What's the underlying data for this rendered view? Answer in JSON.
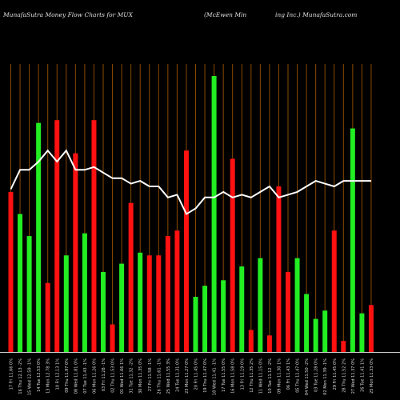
{
  "header": {
    "left": "MunafaSutra  Money Flow  Charts for MUX",
    "middle": "(McEwen  Min",
    "right": "ing Inc.) MunafaSutra.com"
  },
  "chart_data": {
    "type": "bar",
    "title": "MunafaSutra  Money Flow  Charts for MUX",
    "grid": "vertical lines per bar",
    "ylim": [
      0,
      100
    ],
    "colors": {
      "up": "#22ee22",
      "down": "#ff1111",
      "line": "#ffffff",
      "grid": "#8a4a00",
      "axis": "#cccccc"
    },
    "categories": [
      "17 Fri 11.66 0%",
      "16 Thu 12.13 -2%",
      "15 Wed 12.59 -1%",
      "14 Tue 12.53 0%",
      "13 Mon 12.78 3%",
      "10 Fri 12.13 1%",
      "09 Thu 11.97 0%",
      "08 Wed 11.81 0%",
      "07 Tue 11.43 -1%",
      "06 Mon 11.26 0%",
      "03 Fri 11.28 -1%",
      "02 Thu 11.53 0%",
      "01 Wed 11.66 1%",
      "31 Tue 11.32 -2%",
      "30 Mon 11.35 0%",
      "27 Fri 11.58 -1%",
      "26 Thu 11.61 -1%",
      "25 Wed 11.55 3%",
      "24 Tue 11.31 0%",
      "23 Mon 11.27 0%",
      "20 Fri 11.45 0%",
      "19 Thu 11.47 0%",
      "18 Wed 11.41 -1%",
      "17 Tue 11.55 0%",
      "16 Mon 11.58 0%",
      "13 Fri 11.19 0%",
      "12 Thu 11.35 2%",
      "11 Wed 11.15 0%",
      "10 Tue 11.12 -2%",
      "09 Mon 11.30 1%",
      "06 Fri 11.43 1%",
      "05 Thu 11.47 0%",
      "04 Wed 11.50 -2%",
      "03 Tue 11.28 0%",
      "02 Mon 11.39 -1%",
      "29 Fri 11.45 0%",
      "28 Thu 11.52 2%",
      "27 Wed 11.37 0%",
      "26 Tue 11.41 1%",
      "25 Mon 11.33 0%"
    ],
    "series": [
      {
        "values": [
          58,
          50,
          42,
          83,
          25,
          84,
          35,
          72,
          43,
          84,
          29,
          10,
          32,
          54,
          36,
          35,
          35,
          42,
          44,
          73,
          20,
          24,
          100,
          26,
          70,
          31,
          8,
          34,
          6,
          60,
          29,
          34,
          21,
          12,
          15,
          44,
          4,
          81,
          14,
          17
        ],
        "direction": [
          "down",
          "up",
          "up",
          "up",
          "down",
          "down",
          "up",
          "down",
          "up",
          "down",
          "up",
          "down",
          "up",
          "down",
          "up",
          "down",
          "down",
          "down",
          "down",
          "down",
          "up",
          "up",
          "up",
          "up",
          "down",
          "up",
          "down",
          "up",
          "down",
          "down",
          "down",
          "up",
          "up",
          "up",
          "up",
          "down",
          "down",
          "up",
          "up",
          "down"
        ]
      },
      {
        "values": [
          59,
          66,
          66,
          69,
          73,
          69,
          73,
          66,
          66,
          67,
          65,
          63,
          63,
          61,
          62,
          60,
          60,
          56,
          57,
          50,
          52,
          56,
          56,
          58,
          56,
          57,
          56,
          58,
          60,
          56,
          57,
          58,
          60,
          62,
          61,
          60,
          62,
          62,
          62,
          62
        ]
      }
    ]
  }
}
